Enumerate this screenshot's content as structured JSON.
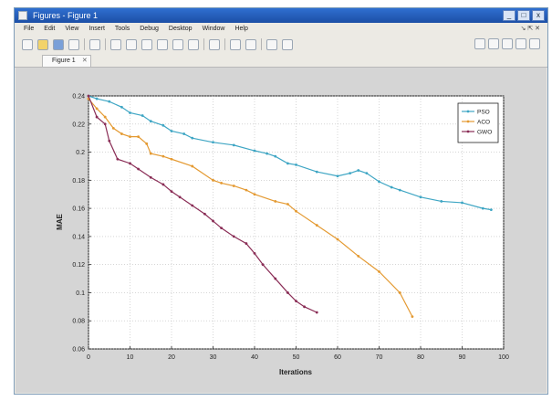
{
  "window": {
    "title": "Figures - Figure 1",
    "controls": [
      "_",
      "□",
      "x"
    ]
  },
  "menu": {
    "items": [
      "File",
      "Edit",
      "View",
      "Insert",
      "Tools",
      "Debug",
      "Desktop",
      "Window",
      "Help"
    ],
    "right": "↘ ⇱ ✕"
  },
  "toolbar": {
    "icons": [
      "new-file-icon",
      "open-folder-icon",
      "save-icon",
      "print-icon",
      "edit-plot-icon",
      "zoom-in-icon",
      "zoom-out-icon",
      "pan-icon",
      "rotate-icon",
      "data-cursor-icon",
      "brush-icon",
      "link-icon",
      "colorbar-icon",
      "legend-icon",
      "hide-plot-tools-icon",
      "show-plot-tools-icon"
    ],
    "dock_icons": [
      "tile-icon",
      "left-right-icon",
      "top-bottom-icon",
      "float-icon",
      "dock-icon"
    ]
  },
  "tabs": [
    {
      "label": "Figure 1",
      "close": "✕"
    }
  ],
  "colors": {
    "series_cyan": "#3fa6c4",
    "series_orange": "#e49a32",
    "series_purple": "#8a2d56"
  },
  "chart_data": {
    "type": "line",
    "title": "",
    "xlabel": "Iterations",
    "ylabel": "MAE",
    "xlim": [
      0,
      100
    ],
    "ylim": [
      0.06,
      0.24
    ],
    "xticks": [
      0,
      10,
      20,
      30,
      40,
      50,
      60,
      70,
      80,
      90,
      100
    ],
    "yticks": [
      0.06,
      0.08,
      0.1,
      0.12,
      0.14,
      0.16,
      0.18,
      0.2,
      0.22,
      0.24
    ],
    "grid": true,
    "legend_position": "top-right",
    "series": [
      {
        "name": "PSO",
        "color": "#3fa6c4",
        "x": [
          0,
          2,
          5,
          8,
          10,
          13,
          15,
          18,
          20,
          23,
          25,
          30,
          35,
          40,
          43,
          45,
          48,
          50,
          55,
          60,
          63,
          65,
          67,
          70,
          73,
          75,
          80,
          85,
          90,
          95,
          97
        ],
        "y": [
          0.24,
          0.238,
          0.236,
          0.232,
          0.228,
          0.226,
          0.222,
          0.219,
          0.215,
          0.213,
          0.21,
          0.207,
          0.205,
          0.201,
          0.199,
          0.197,
          0.192,
          0.191,
          0.186,
          0.183,
          0.185,
          0.187,
          0.185,
          0.179,
          0.175,
          0.173,
          0.168,
          0.165,
          0.164,
          0.16,
          0.159
        ]
      },
      {
        "name": "ACO",
        "color": "#e49a32",
        "x": [
          0,
          2,
          4,
          6,
          8,
          10,
          12,
          14,
          15,
          18,
          20,
          25,
          30,
          32,
          35,
          38,
          40,
          45,
          48,
          50,
          55,
          60,
          65,
          70,
          75,
          78
        ],
        "y": [
          0.238,
          0.231,
          0.225,
          0.217,
          0.213,
          0.211,
          0.211,
          0.206,
          0.199,
          0.197,
          0.195,
          0.19,
          0.18,
          0.178,
          0.176,
          0.173,
          0.17,
          0.165,
          0.163,
          0.158,
          0.148,
          0.138,
          0.126,
          0.115,
          0.1,
          0.083
        ]
      },
      {
        "name": "GWO",
        "color": "#8a2d56",
        "x": [
          0,
          2,
          4,
          5,
          7,
          10,
          12,
          15,
          18,
          20,
          22,
          25,
          28,
          30,
          32,
          35,
          38,
          40,
          42,
          45,
          48,
          50,
          52,
          55
        ],
        "y": [
          0.24,
          0.225,
          0.22,
          0.208,
          0.195,
          0.192,
          0.188,
          0.182,
          0.177,
          0.172,
          0.168,
          0.162,
          0.156,
          0.151,
          0.146,
          0.14,
          0.135,
          0.128,
          0.12,
          0.11,
          0.1,
          0.094,
          0.09,
          0.086
        ]
      }
    ]
  }
}
